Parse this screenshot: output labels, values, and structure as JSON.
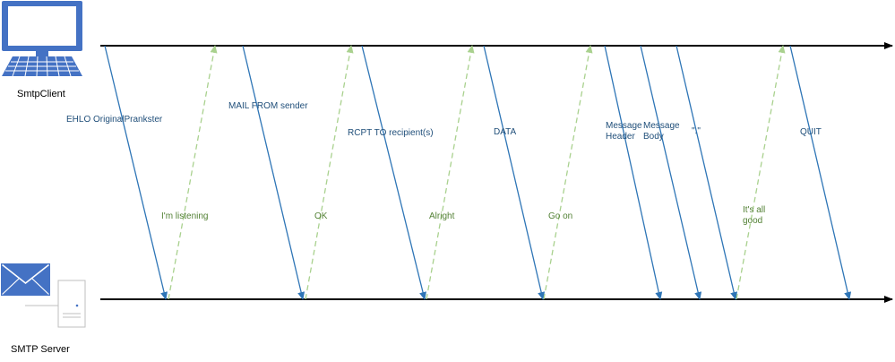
{
  "colors": {
    "timeline": "#000000",
    "client_arrow": "#2e75b6",
    "client_label": "#1f4e79",
    "server_arrow": "#a9d18e",
    "server_label": "#538135",
    "icon_blue": "#4472c4",
    "icon_gray": "#bfbfbf"
  },
  "actors": {
    "client": {
      "label": "SmtpClient",
      "icon": "desktop-computer-icon"
    },
    "server": {
      "label": "SMTP Server",
      "icon": "mail-server-icon"
    }
  },
  "messages": [
    {
      "from": "client",
      "label": [
        "EHLO OriginalPrankster"
      ]
    },
    {
      "from": "server",
      "label": [
        "I'm listening"
      ]
    },
    {
      "from": "client",
      "label": [
        "MAIL FROM sender"
      ]
    },
    {
      "from": "server",
      "label": [
        "OK"
      ]
    },
    {
      "from": "client",
      "label": [
        "RCPT TO recipient(s)"
      ]
    },
    {
      "from": "server",
      "label": [
        "Alright"
      ]
    },
    {
      "from": "client",
      "label": [
        "DATA"
      ]
    },
    {
      "from": "server",
      "label": [
        "Go on"
      ]
    },
    {
      "from": "client",
      "label": [
        "Message",
        "Header"
      ]
    },
    {
      "from": "client",
      "label": [
        "Message",
        "Body"
      ]
    },
    {
      "from": "client",
      "label": [
        "\".\""
      ]
    },
    {
      "from": "server",
      "label": [
        "It's all",
        "good"
      ]
    },
    {
      "from": "client",
      "label": [
        "QUIT"
      ]
    }
  ]
}
